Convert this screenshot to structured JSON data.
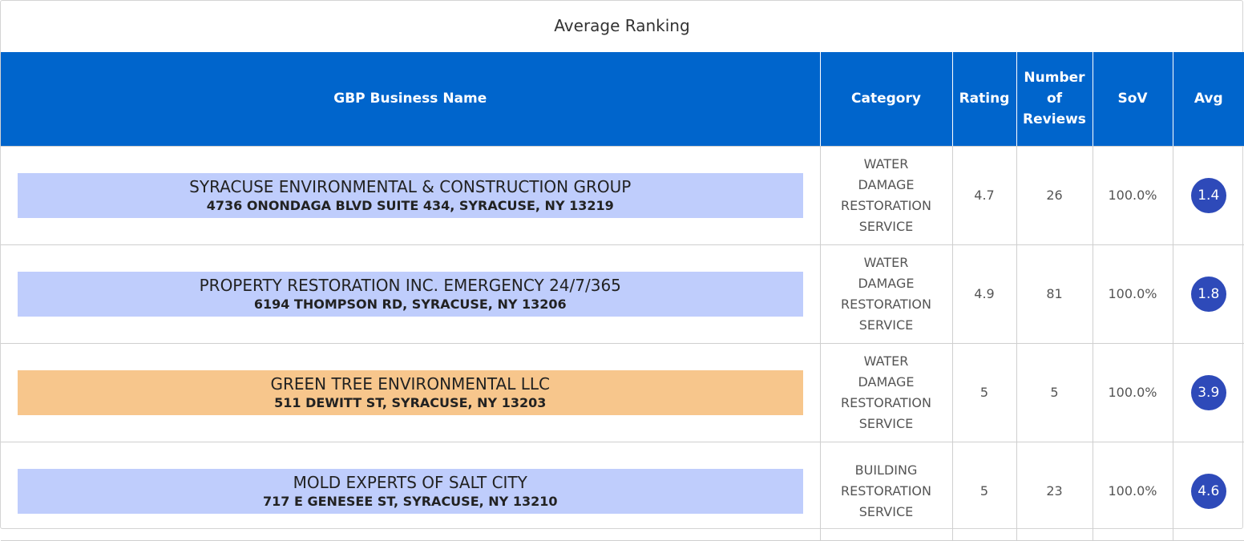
{
  "panel": {
    "title": "Average Ranking"
  },
  "table": {
    "headers": {
      "business_name": "GBP Business Name",
      "category": "Category",
      "rating": "Rating",
      "reviews_line1": "Number",
      "reviews_line2": "of",
      "reviews_line3": "Reviews",
      "sov": "SoV",
      "avg": "Avg"
    },
    "highlight_colors": {
      "competitor": "#bfcdfc",
      "client": "#f7c68c"
    },
    "header_color": "#0065cc",
    "badge_color": "#2e4ab9",
    "rows": [
      {
        "name": "SYRACUSE ENVIRONMENTAL & CONSTRUCTION GROUP",
        "address": "4736 ONONDAGA BLVD SUITE 434, SYRACUSE, NY 13219",
        "category_lines": [
          "WATER",
          "DAMAGE",
          "RESTORATION",
          "SERVICE"
        ],
        "rating": "4.7",
        "reviews": "26",
        "sov": "100.0%",
        "avg": "1.4"
      },
      {
        "name": "PROPERTY RESTORATION INC. EMERGENCY 24/7/365",
        "address": "6194 THOMPSON RD, SYRACUSE, NY 13206",
        "category_lines": [
          "WATER",
          "DAMAGE",
          "RESTORATION",
          "SERVICE"
        ],
        "rating": "4.9",
        "reviews": "81",
        "sov": "100.0%",
        "avg": "1.8"
      },
      {
        "name": "GREEN TREE ENVIRONMENTAL LLC",
        "address": "511 DEWITT ST, SYRACUSE, NY 13203",
        "category_lines": [
          "WATER",
          "DAMAGE",
          "RESTORATION",
          "SERVICE"
        ],
        "rating": "5",
        "reviews": "5",
        "sov": "100.0%",
        "avg": "3.9"
      },
      {
        "name": "MOLD EXPERTS OF SALT CITY",
        "address": "717 E GENESEE ST, SYRACUSE, NY 13210",
        "category_lines": [
          "BUILDING",
          "RESTORATION",
          "SERVICE"
        ],
        "rating": "5",
        "reviews": "23",
        "sov": "100.0%",
        "avg": "4.6"
      }
    ]
  }
}
